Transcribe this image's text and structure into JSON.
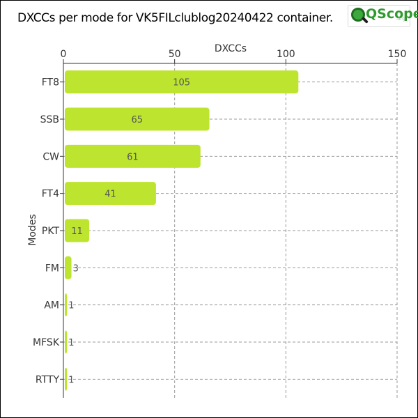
{
  "title": "DXCCs per mode for VK5FILclublog20240422 container.",
  "logo": {
    "text": "QScope",
    "tld": ".org"
  },
  "chart_data": {
    "type": "bar",
    "orientation": "horizontal",
    "title": "DXCCs per mode for VK5FILclublog20240422 container.",
    "xlabel": "DXCCs",
    "ylabel": "Modes",
    "x_axis_position": "top",
    "xlim": [
      0,
      150
    ],
    "xticks": [
      0,
      50,
      100,
      150
    ],
    "grid": true,
    "categories": [
      "FT8",
      "SSB",
      "CW",
      "FT4",
      "PKT",
      "FM",
      "AM",
      "MFSK",
      "RTTY"
    ],
    "values": [
      105,
      65,
      61,
      41,
      11,
      3,
      1,
      1,
      1
    ],
    "bar_color": "#bde52f",
    "grid_color": "#999999"
  }
}
